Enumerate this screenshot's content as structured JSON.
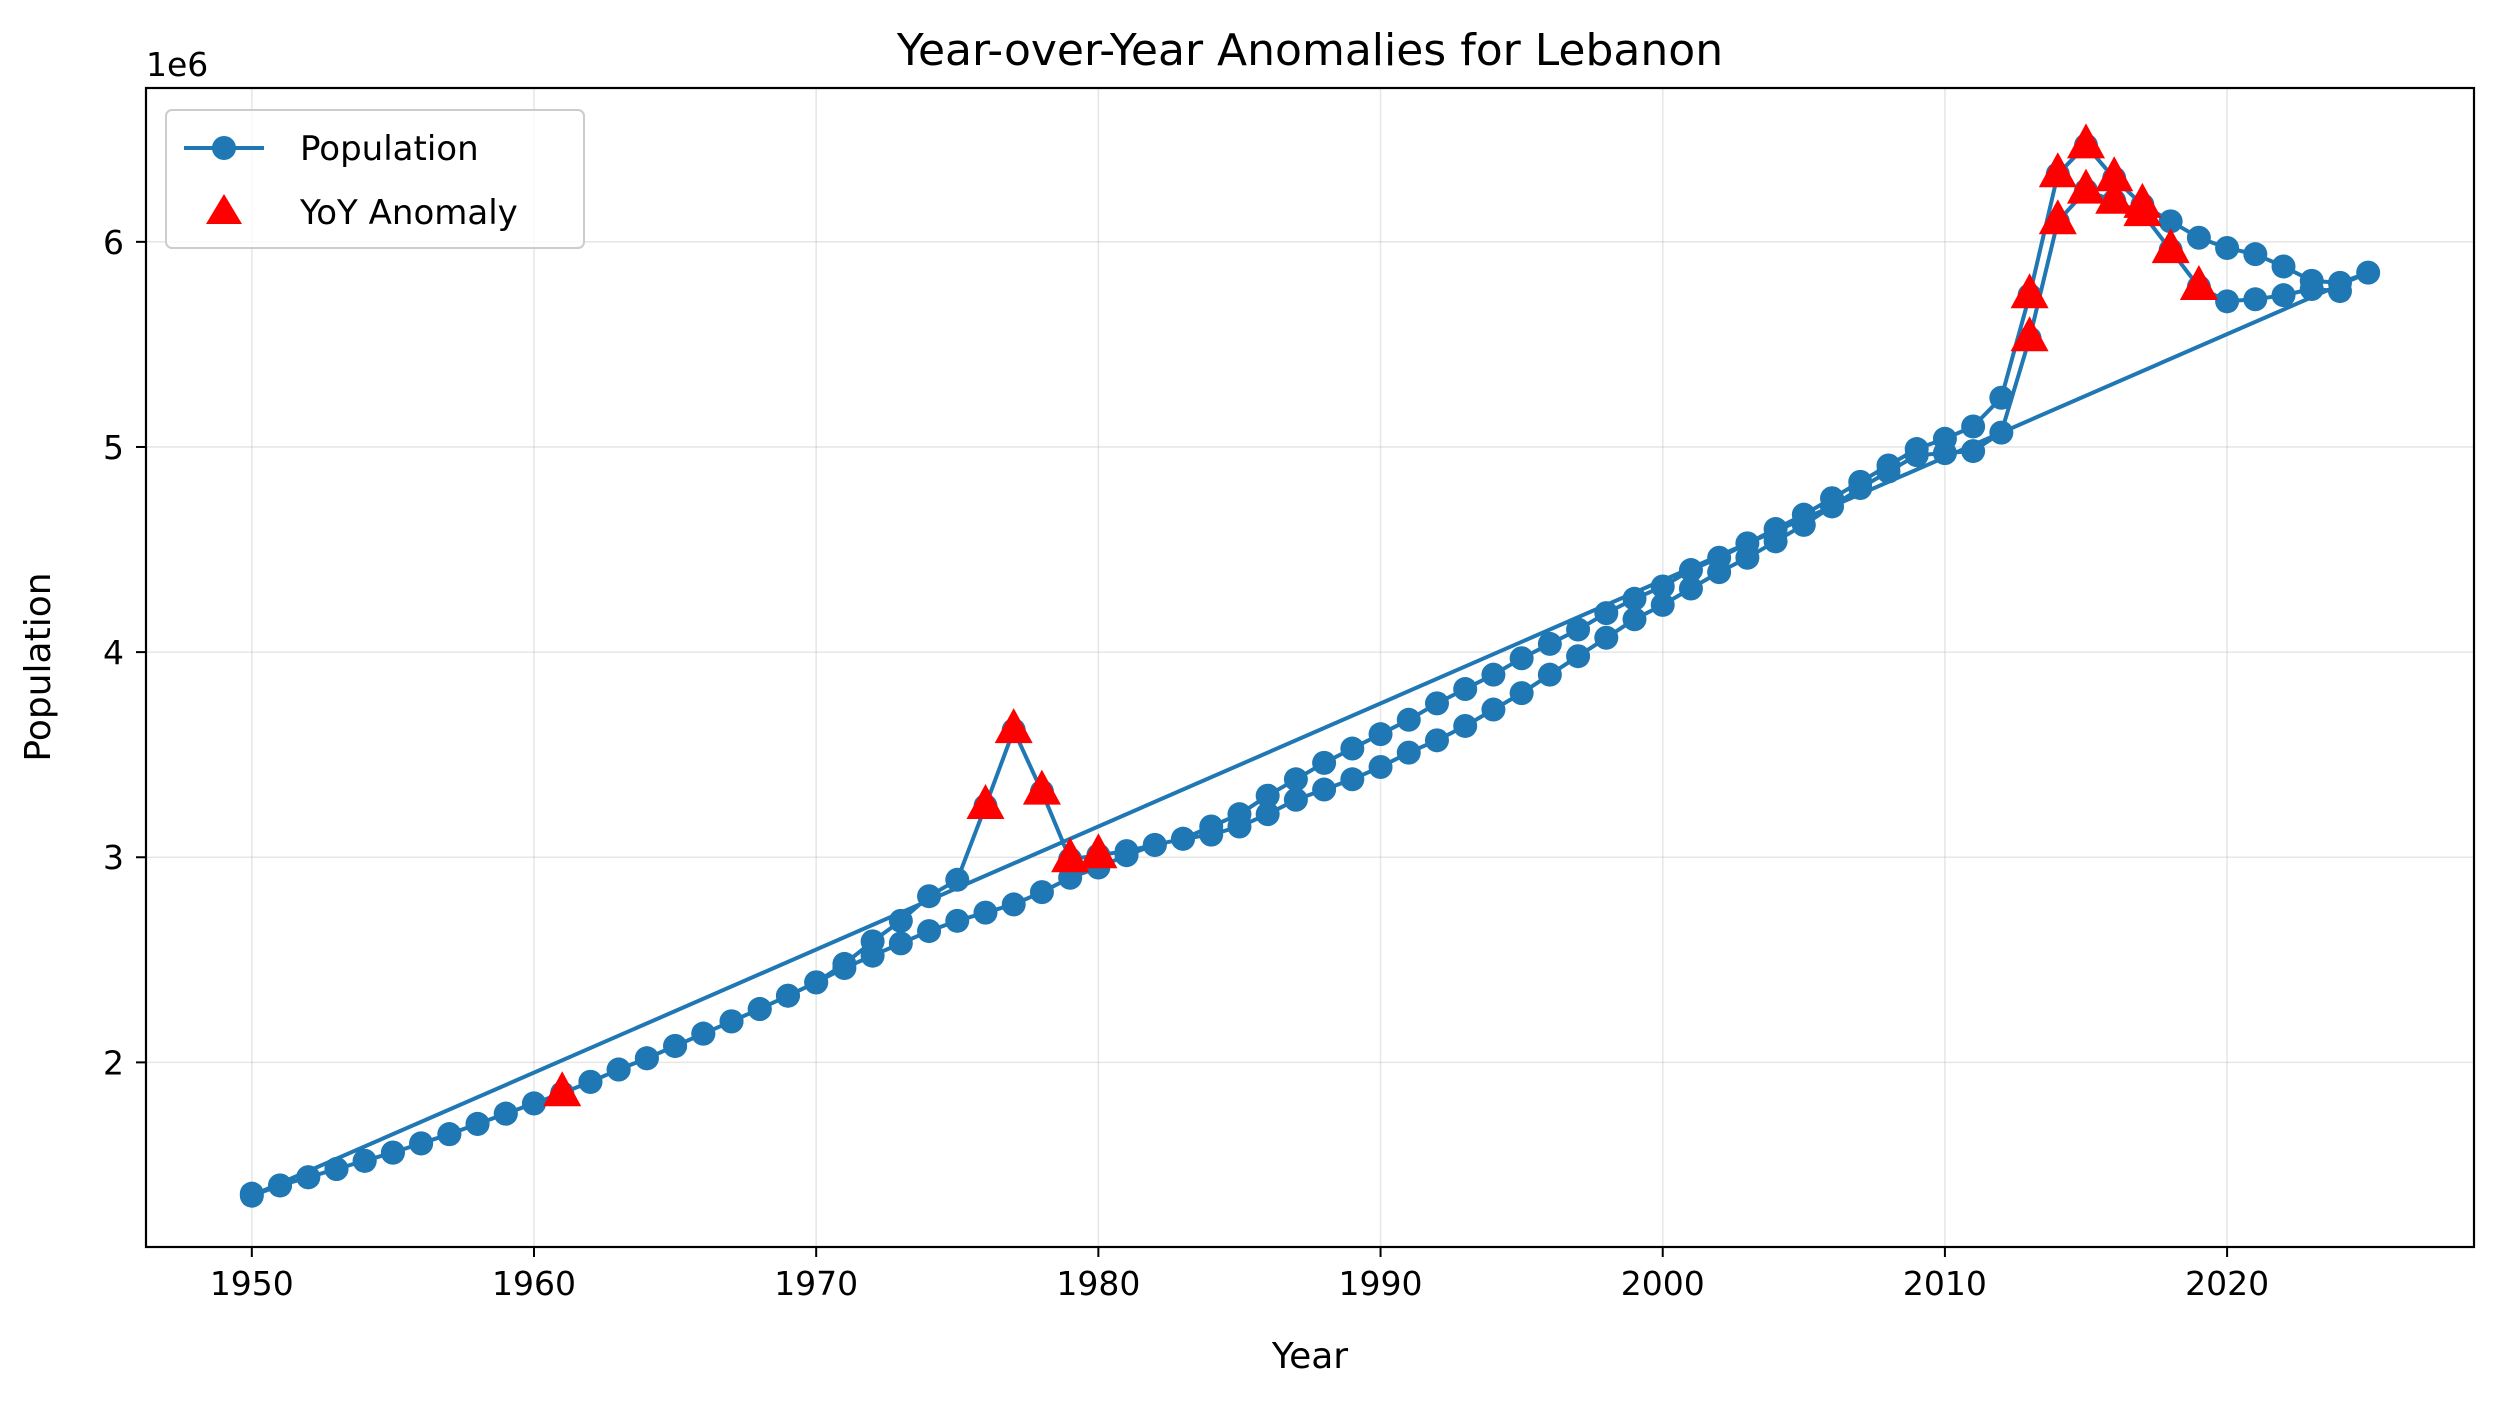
{
  "chart_data": {
    "type": "line",
    "title": "Year-over-Year Anomalies for Lebanon",
    "xlabel": "Year",
    "ylabel": "Population",
    "y_offset_label": "1e6",
    "xlim": [
      1946.25,
      2028.75
    ],
    "ylim": [
      1100000.0,
      6750000.0
    ],
    "x_ticks": [
      1950,
      1960,
      1970,
      1980,
      1990,
      2000,
      2010,
      2020
    ],
    "x_tick_labels": [
      "1950",
      "1960",
      "1970",
      "1980",
      "1990",
      "2000",
      "2010",
      "2020"
    ],
    "y_ticks": [
      2000000,
      3000000,
      4000000,
      5000000,
      6000000
    ],
    "y_tick_labels": [
      "2",
      "3",
      "4",
      "5",
      "6"
    ],
    "grid": true,
    "legend_position": "top-left",
    "series": [
      {
        "name": "Population",
        "color": "#1f77b4",
        "marker": "circle",
        "points": [
          [
            1950,
            1360000
          ],
          [
            1951,
            1400000
          ],
          [
            1952,
            1440000
          ],
          [
            1953,
            1480000
          ],
          [
            1954,
            1520000
          ],
          [
            1955,
            1560000
          ],
          [
            1956,
            1605000
          ],
          [
            1957,
            1650000
          ],
          [
            1958,
            1700000
          ],
          [
            1959,
            1750000
          ],
          [
            1960,
            1800000
          ],
          [
            1961,
            1850000
          ],
          [
            1962,
            1905000
          ],
          [
            1963,
            1965000
          ],
          [
            1964,
            2020000
          ],
          [
            1965,
            2080000
          ],
          [
            1966,
            2140000
          ],
          [
            1967,
            2200000
          ],
          [
            1968,
            2260000
          ],
          [
            1969,
            2325000
          ],
          [
            1970,
            2390000
          ],
          [
            1971,
            2480000
          ],
          [
            1972,
            2590000
          ],
          [
            1973,
            2690000
          ],
          [
            1974,
            2810000
          ],
          [
            1975,
            2890000
          ],
          [
            1976,
            3250000
          ],
          [
            1977,
            3620000
          ],
          [
            1978,
            3320000
          ],
          [
            1979,
            2990000
          ],
          [
            1980,
            3010000
          ],
          [
            1981,
            3030000
          ],
          [
            1982,
            3060000
          ],
          [
            1983,
            3090000
          ],
          [
            1984,
            3150000
          ],
          [
            1985,
            3210000
          ],
          [
            1986,
            3300000
          ],
          [
            1987,
            3380000
          ],
          [
            1988,
            3460000
          ],
          [
            1989,
            3530000
          ],
          [
            1990,
            3600000
          ],
          [
            1991,
            3670000
          ],
          [
            1992,
            3750000
          ],
          [
            1993,
            3820000
          ],
          [
            1994,
            3890000
          ],
          [
            1995,
            3970000
          ],
          [
            1996,
            4040000
          ],
          [
            1997,
            4110000
          ],
          [
            1998,
            4190000
          ],
          [
            1999,
            4260000
          ],
          [
            2000,
            4320000
          ],
          [
            2001,
            4400000
          ],
          [
            2002,
            4460000
          ],
          [
            2003,
            4530000
          ],
          [
            2004,
            4600000
          ],
          [
            2005,
            4670000
          ],
          [
            2006,
            4750000
          ],
          [
            2007,
            4830000
          ],
          [
            2008,
            4910000
          ],
          [
            2009,
            4990000
          ],
          [
            2010,
            5040000
          ],
          [
            2011,
            5100000
          ],
          [
            2012,
            5240000
          ],
          [
            2013,
            5740000
          ],
          [
            2014,
            6330000
          ],
          [
            2015,
            6470000
          ],
          [
            2016,
            6310000
          ],
          [
            2017,
            6180000
          ],
          [
            2018,
            6100000
          ],
          [
            2019,
            6020000
          ],
          [
            2020,
            5970000
          ],
          [
            2021,
            5940000
          ],
          [
            2022,
            5880000
          ],
          [
            2023,
            5810000
          ],
          [
            2024,
            5800000
          ],
          [
            2025,
            5850000
          ],
          [
            1950,
            1350000
          ],
          [
            1951,
            1400000
          ],
          [
            1952,
            1440000
          ],
          [
            1953,
            1480000
          ],
          [
            1954,
            1520000
          ],
          [
            1955,
            1560000
          ],
          [
            1956,
            1605000
          ],
          [
            1957,
            1650000
          ],
          [
            1958,
            1700000
          ],
          [
            1959,
            1750000
          ],
          [
            1960,
            1800000
          ],
          [
            1961,
            1850000
          ],
          [
            1962,
            1905000
          ],
          [
            1963,
            1965000
          ],
          [
            1964,
            2020000
          ],
          [
            1965,
            2080000
          ],
          [
            1966,
            2140000
          ],
          [
            1967,
            2200000
          ],
          [
            1968,
            2260000
          ],
          [
            1969,
            2325000
          ],
          [
            1970,
            2390000
          ],
          [
            1971,
            2460000
          ],
          [
            1972,
            2520000
          ],
          [
            1973,
            2580000
          ],
          [
            1974,
            2640000
          ],
          [
            1975,
            2690000
          ],
          [
            1976,
            2730000
          ],
          [
            1977,
            2770000
          ],
          [
            1978,
            2830000
          ],
          [
            1979,
            2900000
          ],
          [
            1980,
            2950000
          ],
          [
            1981,
            3010000
          ],
          [
            1982,
            3060000
          ],
          [
            1983,
            3090000
          ],
          [
            1984,
            3110000
          ],
          [
            1985,
            3150000
          ],
          [
            1986,
            3210000
          ],
          [
            1987,
            3280000
          ],
          [
            1988,
            3330000
          ],
          [
            1989,
            3380000
          ],
          [
            1990,
            3440000
          ],
          [
            1991,
            3510000
          ],
          [
            1992,
            3570000
          ],
          [
            1993,
            3640000
          ],
          [
            1994,
            3720000
          ],
          [
            1995,
            3800000
          ],
          [
            1996,
            3890000
          ],
          [
            1997,
            3980000
          ],
          [
            1998,
            4070000
          ],
          [
            1999,
            4160000
          ],
          [
            2000,
            4230000
          ],
          [
            2001,
            4310000
          ],
          [
            2002,
            4390000
          ],
          [
            2003,
            4460000
          ],
          [
            2004,
            4540000
          ],
          [
            2005,
            4620000
          ],
          [
            2006,
            4710000
          ],
          [
            2007,
            4800000
          ],
          [
            2008,
            4880000
          ],
          [
            2009,
            4960000
          ],
          [
            2010,
            4970000
          ],
          [
            2011,
            4980000
          ],
          [
            2012,
            5070000
          ],
          [
            2013,
            5530000
          ],
          [
            2014,
            6100000
          ],
          [
            2015,
            6250000
          ],
          [
            2016,
            6200000
          ],
          [
            2017,
            6140000
          ],
          [
            2018,
            5960000
          ],
          [
            2019,
            5780000
          ],
          [
            2020,
            5710000
          ],
          [
            2021,
            5720000
          ],
          [
            2022,
            5740000
          ],
          [
            2023,
            5770000
          ],
          [
            2024,
            5760000
          ]
        ]
      },
      {
        "name": "YoY Anomaly",
        "color": "#ff0000",
        "marker": "triangle",
        "points": [
          [
            1961,
            1850000
          ],
          [
            1976,
            3250000
          ],
          [
            1977,
            3620000
          ],
          [
            1978,
            3320000
          ],
          [
            1979,
            2990000
          ],
          [
            1980,
            3010000
          ],
          [
            2013,
            5740000
          ],
          [
            2013,
            5530000
          ],
          [
            2014,
            6330000
          ],
          [
            2014,
            6100000
          ],
          [
            2015,
            6470000
          ],
          [
            2015,
            6250000
          ],
          [
            2016,
            6310000
          ],
          [
            2016,
            6200000
          ],
          [
            2017,
            6180000
          ],
          [
            2017,
            6140000
          ],
          [
            2018,
            5960000
          ],
          [
            2019,
            5780000
          ]
        ]
      }
    ]
  }
}
